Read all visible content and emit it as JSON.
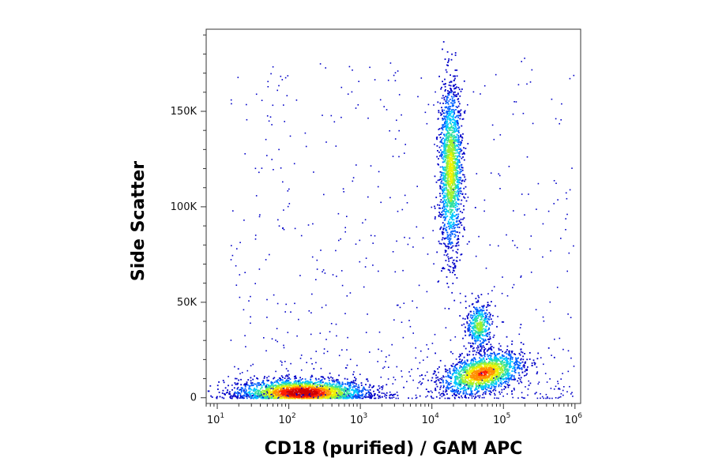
{
  "chart_data": {
    "type": "scatter",
    "title": "",
    "xlabel": "CD18 (purified) / GAM APC",
    "ylabel": "Side Scatter",
    "x_scale": "log",
    "xlim": [
      7,
      1200000
    ],
    "ylim": [
      -3000,
      193000
    ],
    "x_ticks": [
      {
        "base": "10",
        "exp": "1",
        "value": 10
      },
      {
        "base": "10",
        "exp": "2",
        "value": 100
      },
      {
        "base": "10",
        "exp": "3",
        "value": 1000
      },
      {
        "base": "10",
        "exp": "4",
        "value": 10000
      },
      {
        "base": "10",
        "exp": "5",
        "value": 100000
      },
      {
        "base": "10",
        "exp": "6",
        "value": 1000000
      }
    ],
    "y_ticks": [
      {
        "label": "0",
        "value": 0
      },
      {
        "label": "50K",
        "value": 50000
      },
      {
        "label": "100K",
        "value": 100000
      },
      {
        "label": "150K",
        "value": 150000
      }
    ],
    "grid": false,
    "legend": "none",
    "colormap": [
      "#0000c8",
      "#0060ff",
      "#00c8ff",
      "#30e0a0",
      "#a0f030",
      "#f0f000",
      "#ff9000",
      "#ff2000",
      "#d00000"
    ],
    "populations": [
      {
        "name": "lymphocytes",
        "center_x": 150,
        "center_y": 3000,
        "spread_log_x": 0.45,
        "spread_y": 3500,
        "count": 2600,
        "peak_density": 1.0
      },
      {
        "name": "granulocytes",
        "center_x": 18000,
        "center_y": 120000,
        "spread_log_x": 0.08,
        "spread_y": 22000,
        "count": 1700,
        "peak_density": 0.6
      },
      {
        "name": "monocytes",
        "center_x": 45000,
        "center_y": 38000,
        "spread_log_x": 0.09,
        "spread_y": 6000,
        "count": 450,
        "peak_density": 0.5
      },
      {
        "name": "cd18-high-low-ssc",
        "center_x": 50000,
        "center_y": 13000,
        "spread_log_x": 0.28,
        "spread_y": 5000,
        "count": 1700,
        "peak_density": 0.8
      }
    ]
  }
}
